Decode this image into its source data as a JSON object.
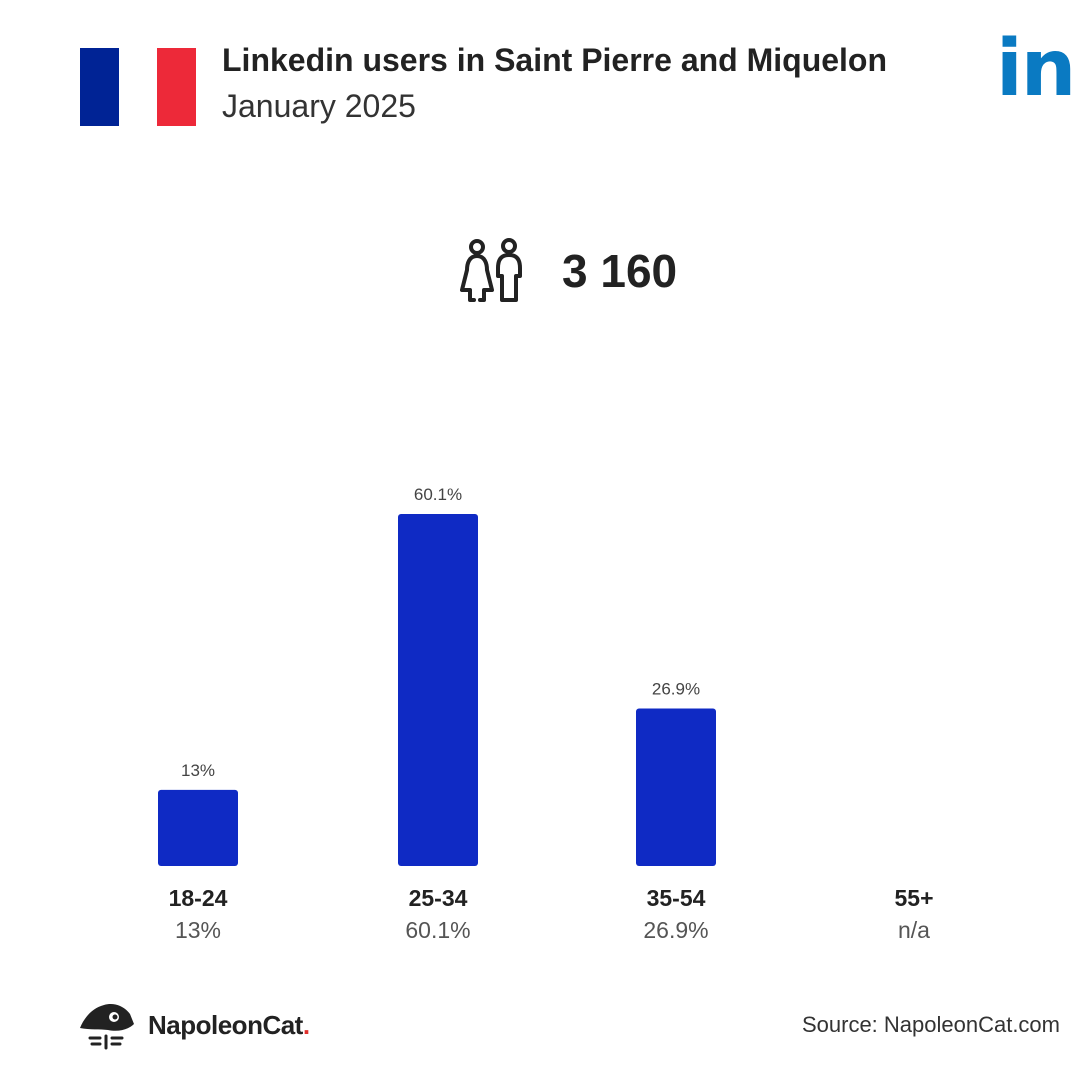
{
  "header": {
    "title": "Linkedin users in Saint Pierre and Miquelon",
    "subtitle": "January 2025",
    "flag_colors": [
      "#002395",
      "#ffffff",
      "#ed2939"
    ],
    "flag_icon": "france-flag-icon",
    "brand_logo": "in",
    "brand_color": "#0a7ac2"
  },
  "total": {
    "icon": "users-couple-icon",
    "value": "3 160"
  },
  "chart_data": {
    "type": "bar",
    "categories": [
      "18-24",
      "25-34",
      "35-54",
      "55+"
    ],
    "values": [
      13,
      60.1,
      26.9,
      null
    ],
    "value_labels": [
      "13%",
      "60.1%",
      "26.9%",
      "n/a"
    ],
    "bar_color": "#0f2ac4",
    "ylim": [
      0,
      60.1
    ],
    "grid": false,
    "legend": "none"
  },
  "footer": {
    "logo_icon": "napoleoncat-logo-icon",
    "brand_name": "NapoleonCat",
    "brand_dot": ".",
    "source": "Source: NapoleonCat.com"
  }
}
